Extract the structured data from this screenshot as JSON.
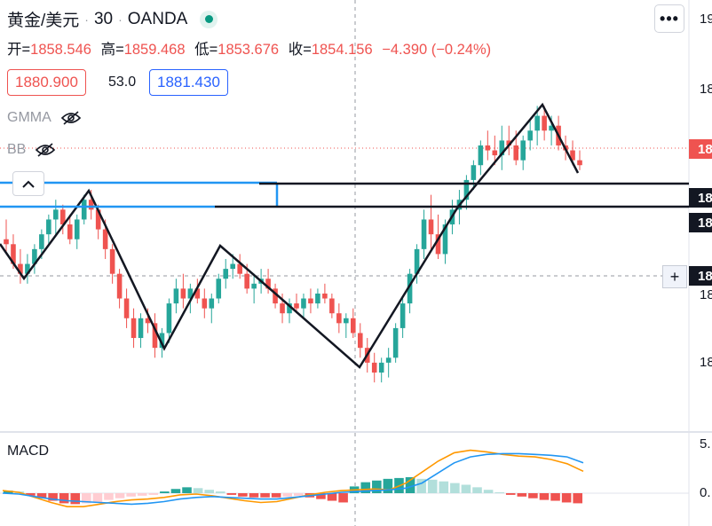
{
  "header": {
    "symbol": "黄金/美元",
    "interval": "30",
    "source": "OANDA",
    "sep": "·",
    "status_color": "#089981"
  },
  "ohlc": {
    "open_label": "开=",
    "open": "1858.546",
    "high_label": "高=",
    "high": "1859.468",
    "low_label": "低=",
    "low": "1853.676",
    "close_label": "收=",
    "close": "1854.156",
    "change": "−4.390 (−0.24%)"
  },
  "trade": {
    "sell": "1880.900",
    "spread": "53.0",
    "buy": "1881.430"
  },
  "indicators": [
    {
      "name": "GMMA",
      "icon": "eye-off-icon"
    },
    {
      "name": "BB",
      "icon": "eye-off-icon"
    }
  ],
  "collapse_icon": "chevron-up-icon",
  "more_icon": "more-horizontal-icon",
  "more_label": "•••",
  "crosshair_plus": "+",
  "price_axis": {
    "labels": [
      "19",
      "18",
      "18",
      "18",
      "18",
      "18",
      "18",
      "18"
    ],
    "current_price_color": "#ef5350",
    "line_tag_color": "#131722"
  },
  "macd": {
    "label": "MACD",
    "axis_labels": [
      "5.",
      "0."
    ],
    "macd_color": "#2196f3",
    "signal_color": "#ff9800"
  },
  "colors": {
    "up": "#26a69a",
    "down": "#ef5350",
    "blue_line": "#2196f3"
  },
  "chart_data": {
    "type": "candlestick",
    "candles": [
      [
        1852,
        1856,
        1849,
        1851
      ],
      [
        1851,
        1853,
        1846,
        1847
      ],
      [
        1847,
        1850,
        1843,
        1845
      ],
      [
        1845,
        1849,
        1843,
        1847
      ],
      [
        1847,
        1851,
        1845,
        1850
      ],
      [
        1850,
        1854,
        1848,
        1853
      ],
      [
        1853,
        1857,
        1851,
        1856
      ],
      [
        1856,
        1860,
        1853,
        1858
      ],
      [
        1858,
        1859,
        1853,
        1855
      ],
      [
        1855,
        1857,
        1851,
        1852
      ],
      [
        1852,
        1857,
        1850,
        1856
      ],
      [
        1856,
        1861,
        1855,
        1860
      ],
      [
        1860,
        1862,
        1856,
        1858
      ],
      [
        1858,
        1859,
        1852,
        1854
      ],
      [
        1854,
        1856,
        1848,
        1850
      ],
      [
        1850,
        1851,
        1843,
        1845
      ],
      [
        1845,
        1846,
        1838,
        1840
      ],
      [
        1840,
        1842,
        1834,
        1836
      ],
      [
        1836,
        1838,
        1830,
        1832
      ],
      [
        1832,
        1837,
        1830,
        1836
      ],
      [
        1836,
        1838,
        1833,
        1835
      ],
      [
        1835,
        1837,
        1828,
        1830
      ],
      [
        1830,
        1834,
        1828,
        1833
      ],
      [
        1833,
        1840,
        1831,
        1839
      ],
      [
        1839,
        1844,
        1837,
        1842
      ],
      [
        1842,
        1845,
        1838,
        1840
      ],
      [
        1840,
        1843,
        1837,
        1842
      ],
      [
        1842,
        1844,
        1839,
        1840
      ],
      [
        1840,
        1842,
        1836,
        1838
      ],
      [
        1838,
        1841,
        1835,
        1840
      ],
      [
        1840,
        1845,
        1839,
        1844
      ],
      [
        1844,
        1848,
        1842,
        1846
      ],
      [
        1846,
        1849,
        1844,
        1847
      ],
      [
        1847,
        1849,
        1844,
        1845
      ],
      [
        1845,
        1847,
        1841,
        1842
      ],
      [
        1842,
        1845,
        1839,
        1843
      ],
      [
        1843,
        1846,
        1841,
        1844
      ],
      [
        1844,
        1846,
        1841,
        1842
      ],
      [
        1842,
        1843,
        1838,
        1839
      ],
      [
        1839,
        1841,
        1835,
        1837
      ],
      [
        1837,
        1840,
        1835,
        1839
      ],
      [
        1839,
        1841,
        1837,
        1838
      ],
      [
        1838,
        1841,
        1836,
        1840
      ],
      [
        1840,
        1842,
        1837,
        1839
      ],
      [
        1839,
        1842,
        1838,
        1841
      ],
      [
        1841,
        1843,
        1839,
        1840
      ],
      [
        1840,
        1841,
        1836,
        1837
      ],
      [
        1837,
        1839,
        1833,
        1835
      ],
      [
        1835,
        1837,
        1832,
        1836
      ],
      [
        1836,
        1838,
        1832,
        1833
      ],
      [
        1833,
        1835,
        1828,
        1830
      ],
      [
        1830,
        1832,
        1825,
        1827
      ],
      [
        1827,
        1829,
        1823,
        1825
      ],
      [
        1825,
        1828,
        1823,
        1827
      ],
      [
        1827,
        1830,
        1824,
        1828
      ],
      [
        1828,
        1835,
        1827,
        1834
      ],
      [
        1834,
        1840,
        1832,
        1839
      ],
      [
        1839,
        1846,
        1837,
        1845
      ],
      [
        1845,
        1851,
        1843,
        1850
      ],
      [
        1850,
        1858,
        1848,
        1856
      ],
      [
        1856,
        1861,
        1850,
        1853
      ],
      [
        1853,
        1857,
        1848,
        1849
      ],
      [
        1849,
        1856,
        1847,
        1855
      ],
      [
        1855,
        1860,
        1853,
        1858
      ],
      [
        1858,
        1862,
        1855,
        1860
      ],
      [
        1860,
        1865,
        1858,
        1864
      ],
      [
        1864,
        1868,
        1862,
        1867
      ],
      [
        1867,
        1872,
        1865,
        1871
      ],
      [
        1871,
        1874,
        1868,
        1870
      ],
      [
        1870,
        1873,
        1867,
        1869
      ],
      [
        1869,
        1875,
        1866,
        1872
      ],
      [
        1872,
        1875,
        1869,
        1871
      ],
      [
        1871,
        1874,
        1867,
        1868
      ],
      [
        1868,
        1873,
        1866,
        1872
      ],
      [
        1872,
        1876,
        1870,
        1874
      ],
      [
        1874,
        1879,
        1871,
        1877
      ],
      [
        1877,
        1879,
        1872,
        1874
      ],
      [
        1874,
        1877,
        1871,
        1875
      ],
      [
        1875,
        1877,
        1870,
        1871
      ],
      [
        1871,
        1873,
        1868,
        1870
      ],
      [
        1870,
        1872,
        1867,
        1868
      ],
      [
        1868,
        1870,
        1866,
        1867
      ]
    ],
    "macd_line": [
      0.0,
      -0.1,
      -0.4,
      -0.7,
      -0.9,
      -1.0,
      -1.1,
      -1.2,
      -1.3,
      -1.2,
      -1.0,
      -0.7,
      -0.5,
      -0.4,
      -0.5,
      -0.6,
      -0.7,
      -0.7,
      -0.5,
      -0.3,
      -0.1,
      0.1,
      0.2,
      0.3,
      0.4,
      0.6,
      1.2,
      2.4,
      3.6,
      4.3,
      4.6,
      4.7,
      4.7,
      4.6,
      4.5,
      4.3,
      3.6
    ],
    "signal_line": [
      0.3,
      0.1,
      -0.5,
      -1.1,
      -1.6,
      -1.6,
      -1.3,
      -1.0,
      -0.8,
      -0.7,
      -0.5,
      -0.2,
      -0.1,
      -0.3,
      -0.6,
      -0.9,
      -1.1,
      -1.0,
      -0.6,
      -0.2,
      0.1,
      0.3,
      0.4,
      0.5,
      0.4,
      1.2,
      2.5,
      3.8,
      4.8,
      5.1,
      4.9,
      4.6,
      4.4,
      4.3,
      4.0,
      3.5,
      2.6
    ],
    "histogram": [
      0.3,
      0.2,
      -0.3,
      -0.6,
      -0.9,
      -1.2,
      -1.3,
      -1.2,
      -1.1,
      -0.8,
      -0.6,
      -0.4,
      -0.3,
      -0.2,
      0.2,
      0.5,
      0.7,
      0.6,
      0.4,
      0.2,
      -0.2,
      -0.4,
      -0.5,
      -0.5,
      -0.5,
      -0.4,
      -0.3,
      -0.5,
      -0.7,
      -0.9,
      -1.1,
      0.8,
      1.3,
      1.5,
      1.7,
      1.8,
      1.9,
      1.7,
      1.6,
      1.4,
      1.2,
      1.0,
      0.7,
      0.4,
      0.1,
      -0.2,
      -0.4,
      -0.6,
      -0.8,
      -0.9,
      -1.1,
      -1.2
    ]
  }
}
